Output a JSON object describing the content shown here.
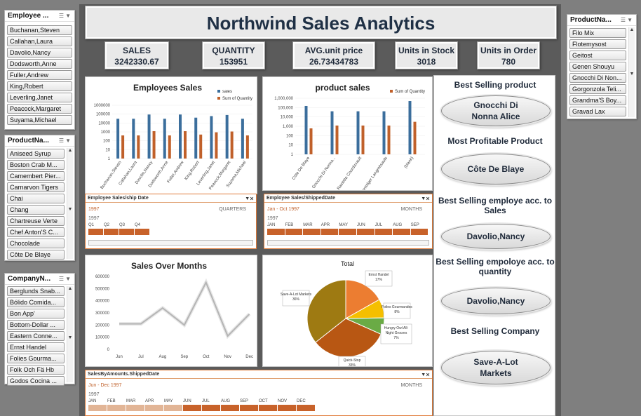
{
  "title": "Northwind Sales Analytics",
  "kpis": [
    {
      "label": "SALES",
      "value": "3242330.67"
    },
    {
      "label": "QUANTITY",
      "value": "153951"
    },
    {
      "label": "AVG.unit price",
      "value": "26.73434783"
    },
    {
      "label": "Units in Stock",
      "value": "3018"
    },
    {
      "label": "Units in Order",
      "value": "780"
    }
  ],
  "slicer_employee": {
    "title": "Employee ...",
    "items": [
      "Buchanan,Steven",
      "Callahan,Laura",
      "Davolio,Nancy",
      "Dodsworth,Anne",
      "Fuller,Andrew",
      "King,Robert",
      "Leverling,Janet",
      "Peacock,Margaret",
      "Suyama,Michael"
    ]
  },
  "slicer_product_left": {
    "title": "ProductNa...",
    "items": [
      "Aniseed Syrup",
      "Boston Crab M...",
      "Camembert Pier...",
      "Carnarvon Tigers",
      "Chai",
      "Chang",
      "Chartreuse Verte",
      "Chef Anton'S C...",
      "Chocolade",
      "Côte De Blaye"
    ]
  },
  "slicer_company": {
    "title": "CompanyN...",
    "items": [
      "Berglunds Snab...",
      "Bólido Comida...",
      "Bon App'",
      "Bottom-Dollar ...",
      "Eastern Conne...",
      "Ernst Handel",
      "Folies Gourma...",
      "Folk Och Fä Hb",
      "Godos Cocina ..."
    ]
  },
  "slicer_product_right": {
    "title": "ProductNa...",
    "items": [
      "Filo Mix",
      "Flotemysost",
      "Geitost",
      "Genen Shouyu",
      "Gnocchi Di Non...",
      "Gorgonzola Teli...",
      "Grandma'S Boy...",
      "Gravad Lax"
    ]
  },
  "right_panel": {
    "best_product_label": "Best Selling product",
    "best_product": "Gnocchi Di Nonna Alice",
    "profit_label": "Most Profitable Product",
    "profit": "Côte De Blaye",
    "emp_sales_label": "Best Selling employe acc. to Sales",
    "emp_sales": "Davolio,Nancy",
    "emp_qty_label": "Best Selling empoloye acc. to quantity",
    "emp_qty": "Davolio,Nancy",
    "company_label": "Best Selling Company",
    "company": "Save-A-Lot Markets"
  },
  "timelines": {
    "t1": {
      "title": "Employee Sales/ship Date",
      "range": "1997",
      "unit": "QUARTERS",
      "year": "1997",
      "periods": [
        "Q1",
        "Q2",
        "Q3",
        "Q4"
      ]
    },
    "t2": {
      "title": "Employee Sales/ShippedDate",
      "range": "Jan - Oct 1997",
      "unit": "MONTHS",
      "year": "1997",
      "periods": [
        "JAN",
        "FEB",
        "MAR",
        "APR",
        "MAY",
        "JUN",
        "JUL",
        "AUG",
        "SEP"
      ]
    },
    "t3": {
      "title": "SalesByAmounts.ShippedDate",
      "range": "Jun - Dec 1997",
      "unit": "MONTHS",
      "year": "1997",
      "periods": [
        "JAN",
        "FEB",
        "MAR",
        "APR",
        "MAY",
        "JUN",
        "JUL",
        "AUG",
        "SEP",
        "OCT",
        "NOV",
        "DEC"
      ]
    }
  },
  "chart_data": [
    {
      "type": "bar",
      "title": "Employees Sales",
      "scale": "log",
      "ylim": [
        1,
        1000000
      ],
      "yticks": [
        "1000000",
        "100000",
        "10000",
        "1000",
        "100",
        "10",
        "1"
      ],
      "categories": [
        "Buchanan,Steven",
        "Callahan,Laura",
        "Davolio,Nancy",
        "Dodsworth,Anne",
        "Fuller,Andrew",
        "King,Robert",
        "Leverling,Janet",
        "Peacock,Margaret",
        "Suyama,Michael"
      ],
      "series": [
        {
          "name": "sales",
          "color": "#3b6e9c",
          "values": [
            30000,
            30000,
            90000,
            30000,
            90000,
            40000,
            60000,
            80000,
            30000
          ]
        },
        {
          "name": "Sum of Quantity",
          "color": "#c0602a",
          "values": [
            400,
            400,
            1200,
            400,
            1200,
            500,
            900,
            1100,
            400
          ]
        }
      ],
      "legend": "top-right"
    },
    {
      "type": "bar",
      "title": "product sales",
      "scale": "log",
      "ylim": [
        1,
        1000000
      ],
      "yticks": [
        "1,000,000",
        "100,000",
        "10,000",
        "1,000",
        "100",
        "10",
        "1"
      ],
      "categories": [
        "Côte De Blaye",
        "Gnocchi Di Nonna...",
        "Raclette Courdavault",
        "Sonstiger Langmitsaufs",
        "(blank)"
      ],
      "series": [
        {
          "name": "sales",
          "color": "#3b6e9c",
          "values": [
            150000,
            40000,
            40000,
            40000,
            500000
          ]
        },
        {
          "name": "Sum of Quantity",
          "color": "#c0602a",
          "values": [
            600,
            1200,
            1200,
            1200,
            3000
          ]
        }
      ],
      "legend": "top-right"
    },
    {
      "type": "line",
      "title": "Sales Over Months",
      "ylim": [
        0,
        600000
      ],
      "yticks": [
        "600000",
        "500000",
        "400000",
        "300000",
        "200000",
        "100000",
        "0"
      ],
      "x": [
        "Jun",
        "Jul",
        "Aug",
        "Sep",
        "Oct",
        "Nov",
        "Dec"
      ],
      "series": [
        {
          "values": [
            210000,
            210000,
            340000,
            200000,
            550000,
            110000,
            290000
          ]
        }
      ]
    },
    {
      "type": "pie",
      "title": "Total",
      "slices": [
        {
          "label": "Save-A-Lot Markets",
          "pct": "36%",
          "value": 36,
          "color": "#9e7a12"
        },
        {
          "label": "Ernst Handel",
          "pct": "17%",
          "value": 17,
          "color": "#ec7d31"
        },
        {
          "label": "Folies Gourmandes",
          "pct": "8%",
          "value": 8,
          "color": "#f5bf00"
        },
        {
          "label": "Hungry Owl All-Night Grocers",
          "pct": "7%",
          "value": 7,
          "color": "#6aab45"
        },
        {
          "label": "Quick-Stop",
          "pct": "33%",
          "value": 33,
          "color": "#b85713"
        }
      ]
    }
  ]
}
